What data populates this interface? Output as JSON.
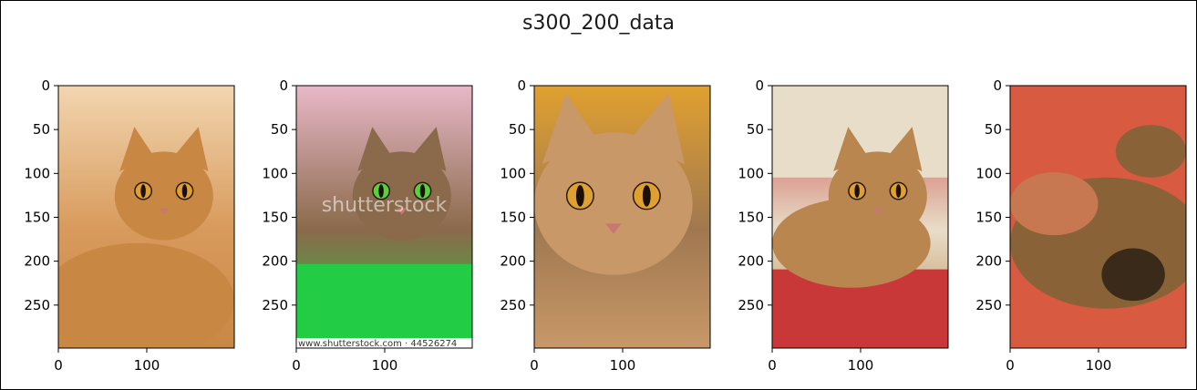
{
  "chart_data": {
    "type": "image-grid",
    "title": "s300_200_data",
    "panels": [
      {
        "index": 0,
        "description": "orange tabby cat looking at camera",
        "palette": [
          "#d89a5c",
          "#c98744",
          "#f2d6b0",
          "#3a57a8"
        ],
        "xlim": [
          0,
          199
        ],
        "ylim": [
          0,
          299
        ],
        "xticks": [
          0,
          100
        ],
        "yticks": [
          0,
          50,
          100,
          150,
          200,
          250
        ]
      },
      {
        "index": 1,
        "description": "abyssinian cat with green eyes on green blanket, stock-photo watermark",
        "palette": [
          "#8a6a4a",
          "#22cc44",
          "#e8b8c8",
          "#5a3a2a"
        ],
        "watermark_center": "shutterstock",
        "watermark_bottom": "www.shutterstock.com · 44526274",
        "xlim": [
          0,
          199
        ],
        "ylim": [
          0,
          299
        ],
        "xticks": [
          0,
          100
        ],
        "yticks": [
          0,
          50,
          100,
          150,
          200,
          250
        ]
      },
      {
        "index": 2,
        "description": "close-up of ruddy abyssinian cat face with orange eyes",
        "palette": [
          "#a07850",
          "#c89868",
          "#e0a030",
          "#5a4030"
        ],
        "xlim": [
          0,
          199
        ],
        "ylim": [
          0,
          299
        ],
        "xticks": [
          0,
          100
        ],
        "yticks": [
          0,
          50,
          100,
          150,
          200,
          250
        ]
      },
      {
        "index": 3,
        "description": "abyssinian cat lying on red cushion",
        "palette": [
          "#e8ddc8",
          "#b8864e",
          "#c83838",
          "#9a6a40"
        ],
        "xlim": [
          0,
          199
        ],
        "ylim": [
          0,
          299
        ],
        "xticks": [
          0,
          100
        ],
        "yticks": [
          0,
          50,
          100,
          150,
          200,
          250
        ]
      },
      {
        "index": 4,
        "description": "abyssinian kittens curled up on red blanket",
        "palette": [
          "#d85a40",
          "#8a6238",
          "#c87850",
          "#3a2a1a"
        ],
        "xlim": [
          0,
          199
        ],
        "ylim": [
          0,
          299
        ],
        "xticks": [
          0,
          100
        ],
        "yticks": [
          0,
          50,
          100,
          150,
          200,
          250
        ]
      }
    ]
  }
}
